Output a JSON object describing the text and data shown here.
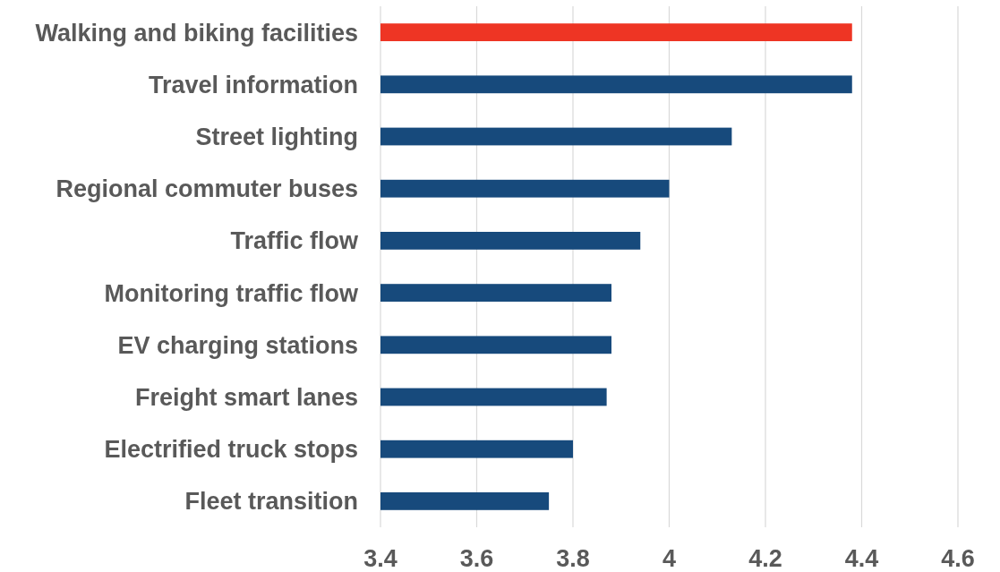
{
  "chart_data": {
    "type": "bar",
    "orientation": "horizontal",
    "categories": [
      "Walking and biking facilities",
      "Travel information",
      "Street lighting",
      "Regional commuter buses",
      "Traffic flow",
      "Monitoring traffic flow",
      "EV charging stations",
      "Freight smart lanes",
      "Electrified truck stops",
      "Fleet transition"
    ],
    "values": [
      4.38,
      4.38,
      4.13,
      4,
      3.94,
      3.88,
      3.88,
      3.87,
      3.8,
      3.75
    ],
    "colors": [
      "#ee3524",
      "#174a7c",
      "#174a7c",
      "#174a7c",
      "#174a7c",
      "#174a7c",
      "#174a7c",
      "#174a7c",
      "#174a7c",
      "#174a7c"
    ],
    "xlim": [
      3.4,
      4.6
    ],
    "xticks": [
      3.4,
      3.6,
      3.8,
      4,
      4.2,
      4.4,
      4.6
    ],
    "grid": "x"
  }
}
